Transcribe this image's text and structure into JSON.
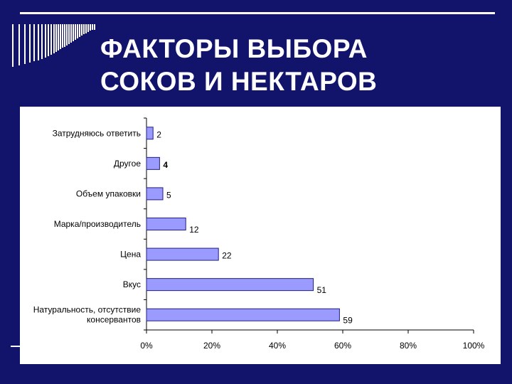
{
  "slide": {
    "title_line1": "ФАКТОРЫ ВЫБОРА",
    "title_line2": "СОКОВ И НЕКТАРОВ"
  },
  "colors": {
    "background": "#12136b",
    "bar_fill": "#9a9aff",
    "bar_stroke": "#202080",
    "title_text": "#ffffff"
  },
  "chart_data": {
    "type": "bar",
    "orientation": "horizontal",
    "title": "",
    "xlabel": "",
    "ylabel": "",
    "categories": [
      "Затрудняюсь ответить",
      "Другое",
      "Объем упаковки",
      "Марка/производитель",
      "Цена",
      "Вкус",
      "Натуральность, отсутствие консервантов"
    ],
    "category_lines": [
      [
        "Затрудняюсь ответить"
      ],
      [
        "Другое"
      ],
      [
        "Объем упаковки"
      ],
      [
        "Марка/производитель"
      ],
      [
        "Цена"
      ],
      [
        "Вкус"
      ],
      [
        "Натуральность, отсутствие",
        "консервантов"
      ]
    ],
    "values": [
      2,
      4,
      5,
      12,
      22,
      51,
      59
    ],
    "data_labels": [
      "2",
      "4",
      "5",
      "12",
      "22",
      "51",
      "59"
    ],
    "xlim": [
      0,
      100
    ],
    "x_ticks": [
      "0%",
      "20%",
      "40%",
      "60%",
      "80%",
      "100%"
    ],
    "grid": false,
    "legend": "none"
  }
}
